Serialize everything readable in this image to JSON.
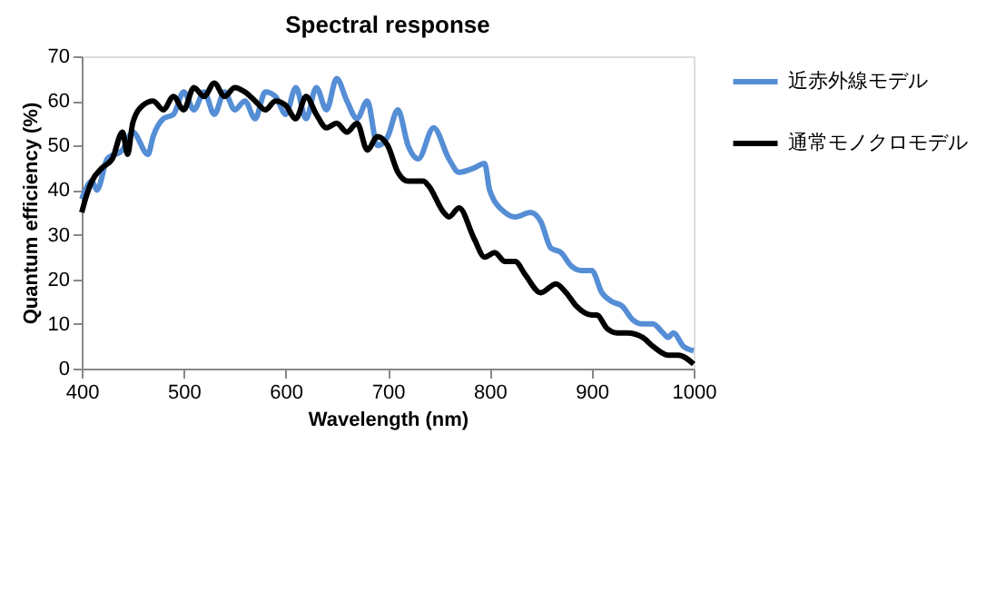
{
  "chart_data": {
    "type": "line",
    "title": "Spectral response",
    "xlabel": "Wavelength (nm)",
    "ylabel": "Quantum efficiency (%)",
    "xlim": [
      400,
      1000
    ],
    "xticks": [
      400,
      500,
      600,
      700,
      800,
      900,
      1000
    ],
    "ylim": [
      0,
      70
    ],
    "yticks": [
      0,
      10,
      20,
      30,
      40,
      50,
      60,
      70
    ],
    "grid": false,
    "legend": "right",
    "marker": "none",
    "line_style": "solid",
    "series": [
      {
        "name": "近赤外線モデル",
        "color": "#558ed5",
        "x": [
          400,
          410,
          415,
          425,
          440,
          450,
          465,
          470,
          480,
          490,
          500,
          510,
          520,
          530,
          540,
          550,
          560,
          570,
          580,
          590,
          600,
          610,
          620,
          630,
          640,
          650,
          660,
          670,
          680,
          690,
          700,
          710,
          720,
          730,
          745,
          760,
          770,
          785,
          795,
          800,
          815,
          825,
          840,
          850,
          860,
          870,
          880,
          890,
          900,
          910,
          920,
          930,
          940,
          950,
          960,
          970,
          975,
          980,
          990,
          1000
        ],
        "values": [
          38,
          42,
          40,
          47,
          49,
          53,
          48,
          52,
          56,
          57,
          62,
          58,
          62,
          57,
          62,
          58,
          60,
          56,
          62,
          61,
          57,
          63,
          56,
          63,
          58,
          65,
          60,
          56,
          60,
          50,
          52,
          58,
          50,
          47,
          54,
          47,
          44,
          45,
          46,
          40,
          35,
          34,
          35,
          33,
          27,
          26,
          23,
          22,
          22,
          17,
          15,
          14,
          11,
          10,
          10,
          8,
          7,
          8,
          5,
          4
        ]
      },
      {
        "name": "通常モノクロモデル",
        "color": "#000000",
        "x": [
          400,
          405,
          410,
          420,
          430,
          440,
          445,
          450,
          460,
          470,
          480,
          490,
          500,
          510,
          520,
          530,
          540,
          550,
          560,
          570,
          580,
          590,
          600,
          610,
          620,
          630,
          640,
          650,
          660,
          670,
          680,
          690,
          700,
          710,
          720,
          735,
          740,
          755,
          760,
          770,
          785,
          795,
          805,
          815,
          825,
          835,
          850,
          865,
          875,
          885,
          900,
          905,
          915,
          925,
          935,
          950,
          960,
          975,
          985,
          1000
        ],
        "values": [
          35,
          39,
          42,
          45,
          47,
          53,
          48,
          55,
          59,
          60,
          58,
          61,
          58,
          63,
          61,
          64,
          61,
          63,
          62,
          60,
          58,
          60,
          59,
          56,
          61,
          57,
          54,
          55,
          53,
          55,
          49,
          52,
          50,
          44,
          42,
          42,
          41,
          35,
          34,
          36,
          29,
          25,
          26,
          24,
          24,
          21,
          17,
          19,
          17,
          14,
          12,
          12,
          9,
          8,
          8,
          7,
          5,
          3,
          3,
          1
        ]
      }
    ]
  }
}
